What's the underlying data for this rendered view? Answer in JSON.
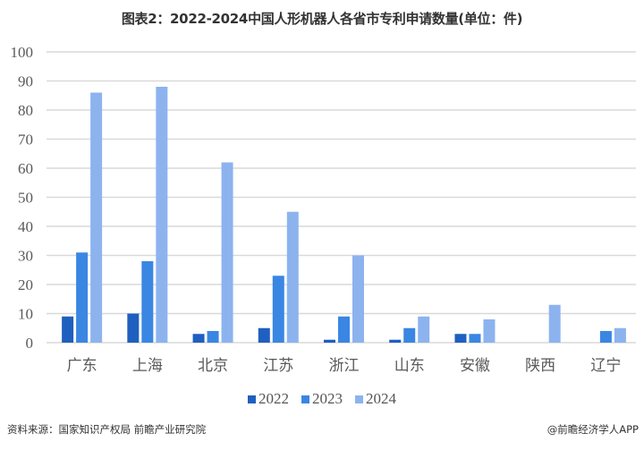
{
  "title": "图表2：2022-2024中国人形机器人各省市专利申请数量(单位：件)",
  "source": "资料来源：国家知识产权局 前瞻产业研究院",
  "brand": "@前瞻经济学人APP",
  "colors": {
    "2022": "#1f5fbf",
    "2023": "#3a86e3",
    "2024": "#8db3ef",
    "grid": "#d9d9d9",
    "axis_text": "#595959"
  },
  "chart_data": {
    "type": "bar",
    "title": "图表2：2022-2024中国人形机器人各省市专利申请数量(单位：件)",
    "xlabel": "",
    "ylabel": "",
    "ylim": [
      0,
      100
    ],
    "yticks": [
      0,
      10,
      20,
      30,
      40,
      50,
      60,
      70,
      80,
      90,
      100
    ],
    "grid": true,
    "legend_position": "bottom",
    "categories": [
      "广东",
      "上海",
      "北京",
      "江苏",
      "浙江",
      "山东",
      "安徽",
      "陕西",
      "辽宁"
    ],
    "series": [
      {
        "name": "2022",
        "values": [
          9,
          10,
          3,
          5,
          1,
          1,
          3,
          0,
          0
        ]
      },
      {
        "name": "2023",
        "values": [
          31,
          28,
          4,
          23,
          9,
          5,
          3,
          0,
          4
        ]
      },
      {
        "name": "2024",
        "values": [
          86,
          88,
          62,
          45,
          30,
          9,
          8,
          13,
          5
        ]
      }
    ]
  },
  "legend": [
    {
      "label": "2022"
    },
    {
      "label": "2023"
    },
    {
      "label": "2024"
    }
  ]
}
